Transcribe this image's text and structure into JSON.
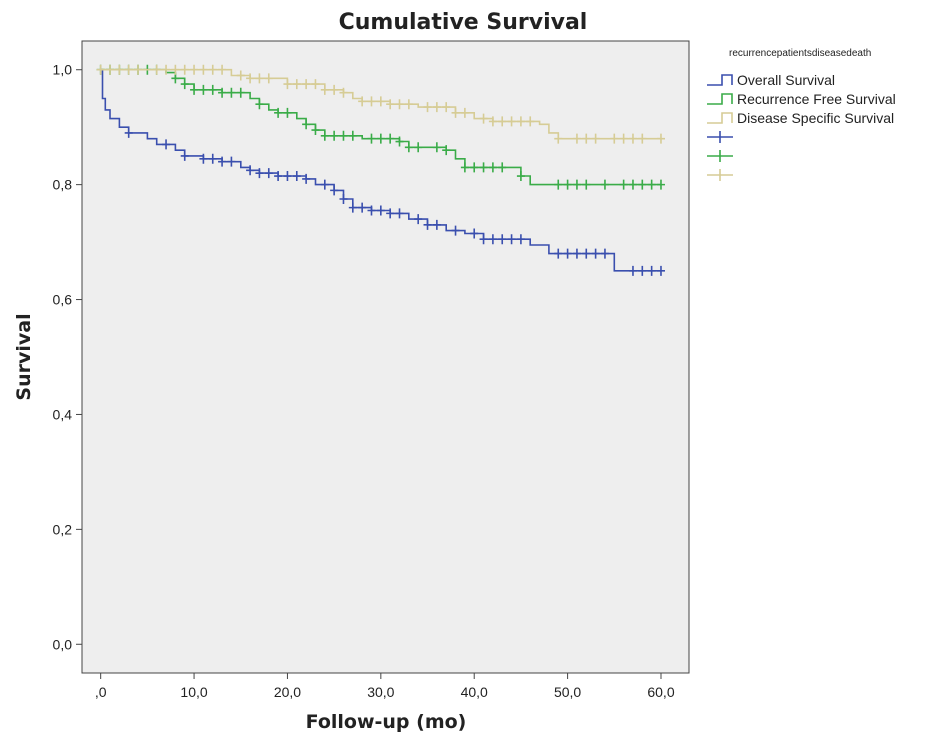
{
  "chart_data": {
    "type": "line",
    "subtype": "kaplan-meier step",
    "title": "Cumulative Survival",
    "xlabel": "Follow-up (mo)",
    "ylabel": "Survival",
    "xlim": [
      -2,
      63
    ],
    "ylim": [
      -0.05,
      1.05
    ],
    "x_ticks": [
      0,
      10,
      20,
      30,
      40,
      50,
      60
    ],
    "x_tick_labels": [
      ",0",
      "10,0",
      "20,0",
      "30,0",
      "40,0",
      "50,0",
      "60,0"
    ],
    "y_ticks": [
      0,
      0.2,
      0.4,
      0.6,
      0.8,
      1.0
    ],
    "y_tick_labels": [
      "0,0",
      "0,2",
      "0,4",
      "0,6",
      "0,8",
      "1,0"
    ],
    "grid": false,
    "legend_title": "recurrencepatientsdiseasedeath",
    "legend_position": "right-outside",
    "series": [
      {
        "name": "Overall Survival",
        "color": "#3a4fae",
        "points": [
          [
            0,
            1.0
          ],
          [
            0.2,
            0.95
          ],
          [
            0.5,
            0.93
          ],
          [
            1,
            0.915
          ],
          [
            2,
            0.9
          ],
          [
            3,
            0.89
          ],
          [
            5,
            0.88
          ],
          [
            6,
            0.87
          ],
          [
            8,
            0.86
          ],
          [
            9,
            0.85
          ],
          [
            11,
            0.845
          ],
          [
            13,
            0.84
          ],
          [
            15,
            0.83
          ],
          [
            16,
            0.825
          ],
          [
            17,
            0.82
          ],
          [
            19,
            0.815
          ],
          [
            22,
            0.81
          ],
          [
            23,
            0.8
          ],
          [
            25,
            0.79
          ],
          [
            26,
            0.775
          ],
          [
            27,
            0.76
          ],
          [
            29,
            0.755
          ],
          [
            31,
            0.75
          ],
          [
            33,
            0.74
          ],
          [
            35,
            0.73
          ],
          [
            37,
            0.72
          ],
          [
            39,
            0.715
          ],
          [
            41,
            0.705
          ],
          [
            46,
            0.695
          ],
          [
            48,
            0.68
          ],
          [
            55,
            0.65
          ],
          [
            60,
            0.65
          ]
        ],
        "censors": [
          3,
          7,
          9,
          11,
          12,
          13,
          14,
          16,
          17,
          18,
          19,
          20,
          21,
          22,
          24,
          25,
          26,
          27,
          28,
          29,
          30,
          31,
          32,
          34,
          35,
          36,
          38,
          40,
          41,
          42,
          43,
          44,
          45,
          49,
          50,
          51,
          52,
          53,
          54,
          57,
          58,
          59,
          60
        ]
      },
      {
        "name": "Recurrence Free Survival",
        "color": "#3aac48",
        "points": [
          [
            0,
            1.0
          ],
          [
            7,
            0.995
          ],
          [
            8,
            0.985
          ],
          [
            9,
            0.975
          ],
          [
            10,
            0.965
          ],
          [
            13,
            0.96
          ],
          [
            16,
            0.95
          ],
          [
            17,
            0.94
          ],
          [
            18,
            0.93
          ],
          [
            19,
            0.925
          ],
          [
            21,
            0.915
          ],
          [
            22,
            0.905
          ],
          [
            23,
            0.895
          ],
          [
            24,
            0.885
          ],
          [
            28,
            0.88
          ],
          [
            32,
            0.875
          ],
          [
            33,
            0.865
          ],
          [
            37,
            0.86
          ],
          [
            38,
            0.845
          ],
          [
            39,
            0.83
          ],
          [
            45,
            0.815
          ],
          [
            46,
            0.8
          ],
          [
            60,
            0.8
          ]
        ],
        "censors": [
          0,
          1,
          2,
          3,
          4,
          5,
          6,
          8,
          9,
          10,
          11,
          12,
          13,
          14,
          15,
          17,
          19,
          20,
          22,
          23,
          24,
          25,
          26,
          27,
          29,
          30,
          31,
          32,
          33,
          34,
          36,
          37,
          39,
          40,
          41,
          42,
          43,
          45,
          49,
          50,
          51,
          52,
          54,
          56,
          57,
          58,
          59,
          60
        ]
      },
      {
        "name": "Disease Specific Survival",
        "color": "#d6cc95",
        "points": [
          [
            0,
            1.0
          ],
          [
            14,
            0.99
          ],
          [
            16,
            0.985
          ],
          [
            20,
            0.975
          ],
          [
            24,
            0.965
          ],
          [
            26,
            0.96
          ],
          [
            27,
            0.95
          ],
          [
            28,
            0.945
          ],
          [
            31,
            0.94
          ],
          [
            34,
            0.935
          ],
          [
            38,
            0.925
          ],
          [
            40,
            0.915
          ],
          [
            42,
            0.91
          ],
          [
            47,
            0.905
          ],
          [
            48,
            0.89
          ],
          [
            49,
            0.88
          ],
          [
            60,
            0.88
          ]
        ],
        "censors": [
          0,
          1,
          2,
          3,
          4,
          6,
          7,
          8,
          9,
          10,
          11,
          12,
          13,
          15,
          16,
          17,
          18,
          20,
          21,
          22,
          23,
          24,
          25,
          26,
          28,
          29,
          30,
          31,
          32,
          33,
          35,
          36,
          37,
          38,
          39,
          41,
          42,
          43,
          44,
          45,
          46,
          49,
          51,
          52,
          53,
          55,
          56,
          57,
          58,
          60
        ]
      }
    ]
  }
}
